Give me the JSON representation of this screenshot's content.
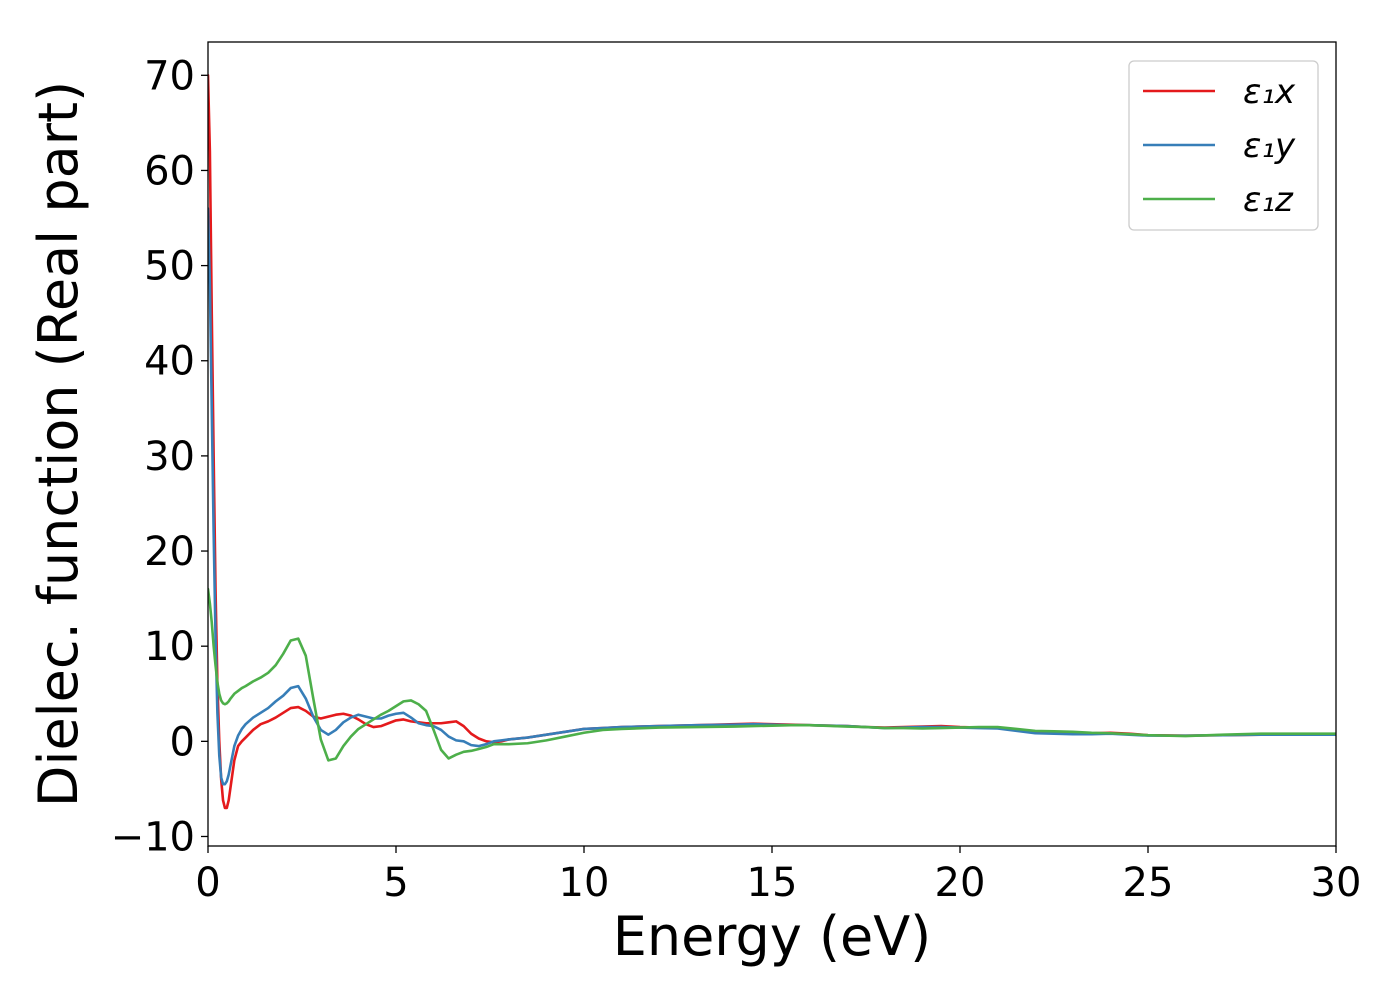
{
  "chart_data": {
    "type": "line",
    "xlabel": "Energy (eV)",
    "ylabel": "Dielec. function (Real part)",
    "xlim": [
      0,
      30
    ],
    "ylim": [
      -11,
      73.5
    ],
    "xticks": [
      0,
      5,
      10,
      15,
      20,
      25,
      30
    ],
    "xtick_labels": [
      "0",
      "5",
      "10",
      "15",
      "20",
      "25",
      "30"
    ],
    "yticks": [
      -10,
      0,
      10,
      20,
      30,
      40,
      50,
      60,
      70
    ],
    "ytick_labels": [
      "−10",
      "0",
      "10",
      "20",
      "30",
      "40",
      "50",
      "60",
      "70"
    ],
    "grid": false,
    "legend_position": "top-right",
    "series": [
      {
        "name": "ε₁x",
        "color": "#e41a1c",
        "x": [
          0,
          0.05,
          0.1,
          0.15,
          0.2,
          0.25,
          0.3,
          0.35,
          0.4,
          0.45,
          0.5,
          0.55,
          0.6,
          0.7,
          0.8,
          0.9,
          1.0,
          1.2,
          1.4,
          1.6,
          1.8,
          2.0,
          2.2,
          2.4,
          2.6,
          2.8,
          3.0,
          3.2,
          3.4,
          3.6,
          3.8,
          4.0,
          4.2,
          4.4,
          4.6,
          4.8,
          5.0,
          5.2,
          5.4,
          5.6,
          5.8,
          6.0,
          6.2,
          6.4,
          6.6,
          6.8,
          7.0,
          7.2,
          7.4,
          7.6,
          7.8,
          8.0,
          8.5,
          9.0,
          9.5,
          10.0,
          10.5,
          11.0,
          12.0,
          13.0,
          14.0,
          14.5,
          15.0,
          15.5,
          16.0,
          17.0,
          17.5,
          18.0,
          18.5,
          19.0,
          19.5,
          20.0,
          20.5,
          21.0,
          21.5,
          22.0,
          22.5,
          23.0,
          23.5,
          24.0,
          24.5,
          25.0,
          26.0,
          27.0,
          28.0,
          29.0,
          30.0
        ],
        "y": [
          70,
          62,
          45,
          30,
          16,
          6,
          0,
          -4,
          -6.2,
          -7,
          -7,
          -6.2,
          -4.8,
          -2,
          -0.5,
          0,
          0.4,
          1.2,
          1.8,
          2.1,
          2.5,
          3,
          3.5,
          3.6,
          3.2,
          2.6,
          2.4,
          2.6,
          2.8,
          2.9,
          2.7,
          2.3,
          1.8,
          1.5,
          1.6,
          1.9,
          2.2,
          2.3,
          2.1,
          2.0,
          1.9,
          1.9,
          1.9,
          2.0,
          2.1,
          1.6,
          0.8,
          0.3,
          0.0,
          -0.1,
          0.0,
          0.2,
          0.4,
          0.7,
          1.0,
          1.3,
          1.4,
          1.5,
          1.6,
          1.7,
          1.8,
          1.85,
          1.8,
          1.75,
          1.7,
          1.6,
          1.5,
          1.45,
          1.5,
          1.55,
          1.6,
          1.5,
          1.45,
          1.4,
          1.2,
          1.0,
          0.95,
          0.9,
          0.85,
          0.9,
          0.8,
          0.65,
          0.6,
          0.65,
          0.7,
          0.75,
          0.75
        ]
      },
      {
        "name": "ε₁y",
        "color": "#377eb8",
        "x": [
          0,
          0.05,
          0.1,
          0.15,
          0.2,
          0.25,
          0.3,
          0.35,
          0.4,
          0.45,
          0.5,
          0.55,
          0.6,
          0.7,
          0.8,
          0.9,
          1.0,
          1.2,
          1.4,
          1.6,
          1.8,
          2.0,
          2.2,
          2.4,
          2.6,
          2.8,
          3.0,
          3.2,
          3.4,
          3.6,
          3.8,
          4.0,
          4.2,
          4.4,
          4.6,
          4.8,
          5.0,
          5.2,
          5.4,
          5.6,
          5.8,
          6.0,
          6.2,
          6.4,
          6.6,
          6.8,
          7.0,
          7.2,
          7.4,
          7.6,
          7.8,
          8.0,
          8.5,
          9.0,
          9.5,
          10.0,
          10.5,
          11.0,
          12.0,
          13.0,
          14.0,
          14.5,
          15.0,
          15.5,
          16.0,
          17.0,
          17.5,
          18.0,
          18.5,
          19.0,
          19.5,
          20.0,
          20.5,
          21.0,
          21.5,
          22.0,
          22.5,
          23.0,
          23.5,
          24.0,
          24.5,
          25.0,
          26.0,
          27.0,
          28.0,
          29.0,
          30.0
        ],
        "y": [
          56,
          48,
          35,
          22,
          11,
          3,
          -1.5,
          -3.8,
          -4.5,
          -4.5,
          -4.2,
          -3.5,
          -2.5,
          -0.5,
          0.6,
          1.3,
          1.8,
          2.5,
          3.0,
          3.5,
          4.2,
          4.8,
          5.6,
          5.8,
          4.5,
          2.6,
          1.2,
          0.7,
          1.2,
          2.0,
          2.5,
          2.8,
          2.6,
          2.4,
          2.4,
          2.7,
          2.9,
          3.0,
          2.5,
          1.9,
          1.7,
          1.6,
          1.2,
          0.5,
          0.1,
          0.0,
          -0.4,
          -0.5,
          -0.3,
          0.0,
          0.1,
          0.2,
          0.4,
          0.7,
          1.0,
          1.3,
          1.4,
          1.5,
          1.6,
          1.7,
          1.75,
          1.8,
          1.75,
          1.7,
          1.7,
          1.6,
          1.5,
          1.4,
          1.45,
          1.5,
          1.5,
          1.45,
          1.4,
          1.35,
          1.1,
          0.85,
          0.8,
          0.75,
          0.75,
          0.8,
          0.7,
          0.6,
          0.6,
          0.65,
          0.7,
          0.7,
          0.7
        ]
      },
      {
        "name": "ε₁z",
        "color": "#4daf4a",
        "x": [
          0,
          0.05,
          0.1,
          0.15,
          0.2,
          0.25,
          0.3,
          0.35,
          0.4,
          0.45,
          0.5,
          0.55,
          0.6,
          0.7,
          0.8,
          0.9,
          1.0,
          1.2,
          1.4,
          1.6,
          1.8,
          2.0,
          2.2,
          2.4,
          2.6,
          2.8,
          3.0,
          3.2,
          3.4,
          3.6,
          3.8,
          4.0,
          4.2,
          4.4,
          4.6,
          4.8,
          5.0,
          5.2,
          5.4,
          5.6,
          5.8,
          6.0,
          6.2,
          6.4,
          6.6,
          6.8,
          7.0,
          7.2,
          7.4,
          7.6,
          7.8,
          8.0,
          8.5,
          9.0,
          9.5,
          10.0,
          10.5,
          11.0,
          12.0,
          13.0,
          14.0,
          14.5,
          15.0,
          15.5,
          16.0,
          17.0,
          17.5,
          18.0,
          18.5,
          19.0,
          19.5,
          20.0,
          20.5,
          21.0,
          21.5,
          22.0,
          22.5,
          23.0,
          23.5,
          24.0,
          24.5,
          25.0,
          26.0,
          27.0,
          28.0,
          29.0,
          30.0
        ],
        "y": [
          16,
          14.5,
          12.5,
          10,
          8,
          6.2,
          5.0,
          4.3,
          4.0,
          3.9,
          4.0,
          4.2,
          4.5,
          5.0,
          5.3,
          5.6,
          5.8,
          6.3,
          6.7,
          7.2,
          8.0,
          9.2,
          10.6,
          10.8,
          9.0,
          4.5,
          0.2,
          -2.0,
          -1.8,
          -0.5,
          0.5,
          1.3,
          1.8,
          2.3,
          2.8,
          3.2,
          3.7,
          4.2,
          4.3,
          3.9,
          3.2,
          1.2,
          -0.9,
          -1.8,
          -1.4,
          -1.1,
          -1.0,
          -0.8,
          -0.6,
          -0.3,
          -0.3,
          -0.3,
          -0.2,
          0.1,
          0.5,
          0.9,
          1.2,
          1.3,
          1.45,
          1.5,
          1.55,
          1.6,
          1.65,
          1.7,
          1.7,
          1.55,
          1.5,
          1.4,
          1.4,
          1.35,
          1.4,
          1.45,
          1.5,
          1.5,
          1.3,
          1.1,
          1.05,
          1.0,
          0.9,
          0.85,
          0.75,
          0.65,
          0.55,
          0.7,
          0.8,
          0.8,
          0.8
        ]
      }
    ]
  }
}
